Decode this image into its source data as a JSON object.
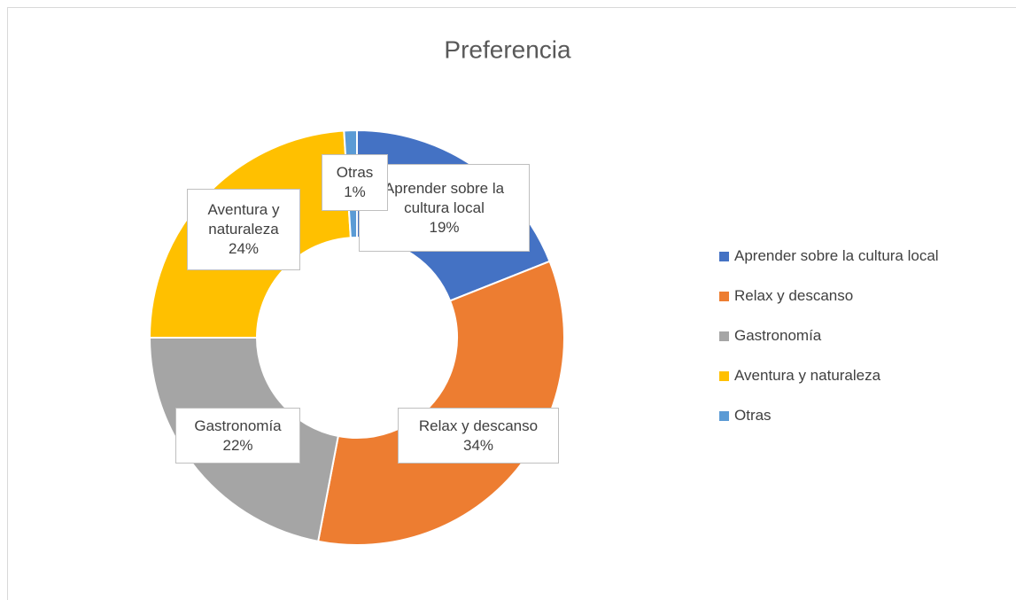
{
  "chart_data": {
    "type": "donut",
    "title": "Preferencia",
    "categories": [
      "Aprender sobre la cultura local",
      "Relax y descanso",
      "Gastronomía",
      "Aventura y naturaleza",
      "Otras"
    ],
    "values": [
      19,
      34,
      22,
      24,
      1
    ],
    "value_labels": [
      "19%",
      "34%",
      "22%",
      "24%",
      "1%"
    ],
    "colors": [
      "#4472c4",
      "#ed7d31",
      "#a5a5a5",
      "#ffc000",
      "#5b9bd5"
    ],
    "legend": "right"
  }
}
